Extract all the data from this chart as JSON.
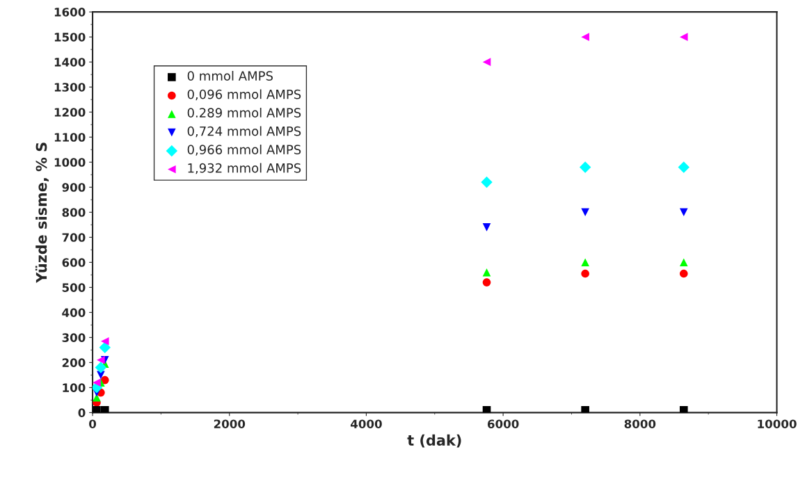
{
  "chart_data": {
    "type": "scatter",
    "xlabel": "t (dak)",
    "ylabel": "Yüzde sisme, % S",
    "xlim": [
      0,
      10000
    ],
    "xticks": [
      0,
      2000,
      4000,
      6000,
      8000,
      10000
    ],
    "ylim": [
      0,
      1600
    ],
    "yticks": [
      0,
      100,
      200,
      300,
      400,
      500,
      600,
      700,
      800,
      900,
      1000,
      1100,
      1200,
      1300,
      1400,
      1500,
      1600
    ],
    "x": [
      60,
      120,
      180,
      5760,
      7200,
      8640
    ],
    "legend": "top left",
    "grid": false,
    "series": [
      {
        "name": "0 mmol AMPS",
        "color": "#000000",
        "marker": "square",
        "x": [
          60,
          180,
          5760,
          7200,
          8640
        ],
        "values": [
          10,
          10,
          10,
          10,
          10
        ]
      },
      {
        "name": "0,096 mmol AMPS",
        "color": "#ff0000",
        "marker": "circle",
        "values": [
          40,
          80,
          130,
          520,
          555,
          555
        ]
      },
      {
        "name": "0.289 mmol AMPS",
        "color": "#00ff00",
        "marker": "triangle",
        "values": [
          60,
          120,
          195,
          560,
          600,
          600
        ]
      },
      {
        "name": "0,724 mmol AMPS",
        "color": "#0000ff",
        "marker": "triangle_down",
        "values": [
          80,
          150,
          210,
          740,
          800,
          800
        ]
      },
      {
        "name": "0,966 mmol AMPS",
        "color": "#00ffff",
        "marker": "diamond",
        "values": [
          100,
          180,
          260,
          920,
          980,
          980
        ]
      },
      {
        "name": "1,932 mmol AMPS",
        "color": "#ff00ff",
        "marker": "triangle_left",
        "values": [
          120,
          210,
          285,
          1400,
          1500,
          1500
        ]
      }
    ]
  }
}
